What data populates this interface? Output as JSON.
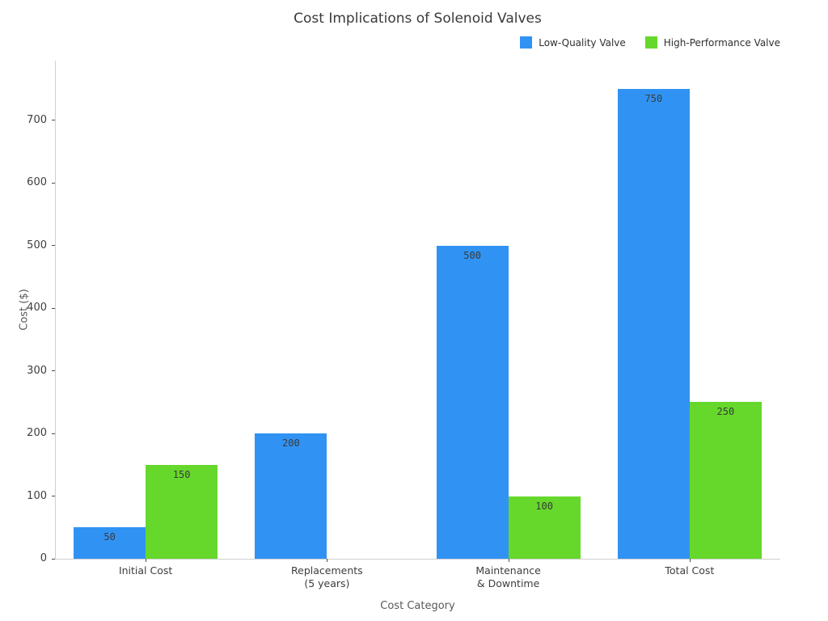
{
  "chart_data": {
    "type": "bar",
    "title": "Cost Implications of Solenoid Valves",
    "xlabel": "Cost Category",
    "ylabel": "Cost ($)",
    "categories": [
      "Initial Cost",
      "Replacements\n(5 years)",
      "Maintenance\n& Downtime",
      "Total Cost"
    ],
    "series": [
      {
        "name": "Low-Quality Valve",
        "color": "#3093f3",
        "values": [
          50,
          200,
          500,
          750
        ]
      },
      {
        "name": "High-Performance Valve",
        "color": "#65d82b",
        "values": [
          150,
          0,
          100,
          250
        ]
      }
    ],
    "bar_value_labels": true,
    "yticks": [
      0,
      100,
      200,
      300,
      400,
      500,
      600,
      700
    ],
    "ylim": [
      0,
      795
    ],
    "grid": false,
    "legend_position": "top-right"
  },
  "colors": {
    "spine": "#cfcfcf",
    "tick": "#4d4d4d",
    "title_text": "#3a3a3a",
    "axis_text": "#595959",
    "tick_text": "#3d3d3d"
  }
}
